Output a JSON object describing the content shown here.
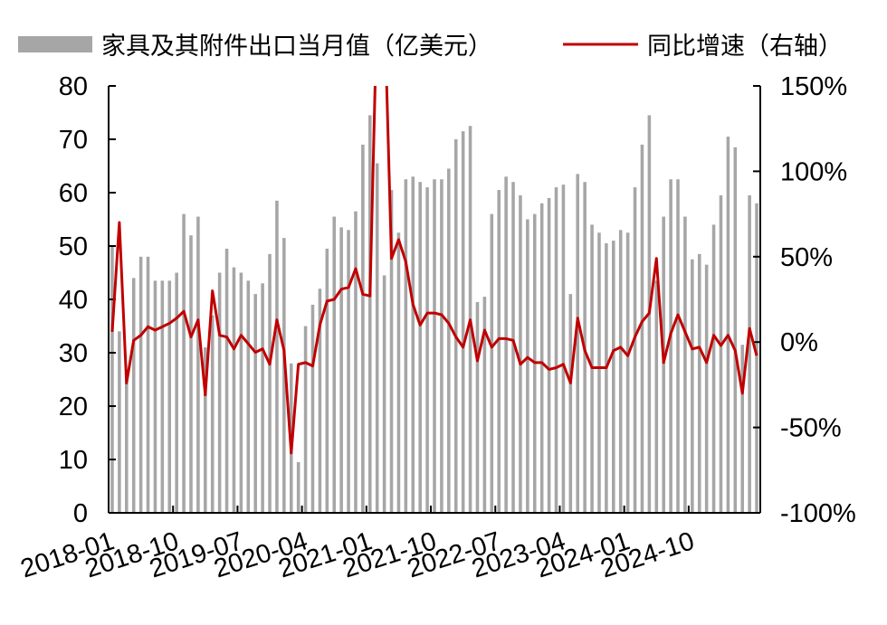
{
  "chart_data": {
    "type": "bar+line",
    "legend": {
      "bar_label": "家具及其附件出口当月值（亿美元）",
      "line_label": "同比增速（右轴）",
      "position": "top"
    },
    "colors": {
      "bar": "#a6a6a6",
      "line": "#c00000",
      "axis": "#000000"
    },
    "y_left": {
      "min": 0,
      "max": 80,
      "ticks": [
        "80",
        "70",
        "60",
        "50",
        "40",
        "30",
        "20",
        "10",
        "0"
      ]
    },
    "y_right": {
      "min": -1.0,
      "max": 1.5,
      "ticks": [
        "150%",
        "100%",
        "50%",
        "0%",
        "-50%",
        "-100%"
      ]
    },
    "x_tick_labels": [
      "2018-01",
      "2018-10",
      "2019-07",
      "2020-04",
      "2021-01",
      "2021-10",
      "2022-07",
      "2023-04",
      "2024-01",
      "2024-10"
    ],
    "x_start": "2018-01",
    "grid": false,
    "series": [
      {
        "name": "家具及其附件出口当月值（亿美元）",
        "type": "bar",
        "values": [
          50.0,
          34.0,
          25.5,
          44.0,
          48.0,
          48.0,
          43.5,
          43.5,
          43.5,
          45.0,
          56.0,
          52.0,
          55.5,
          31.0,
          37.0,
          45.0,
          49.5,
          46.0,
          45.0,
          43.5,
          41.0,
          43.0,
          48.5,
          58.5,
          51.5,
          28.0,
          9.5,
          35.0,
          39.0,
          42.0,
          49.5,
          55.5,
          53.5,
          53.0,
          56.5,
          69.0,
          74.5,
          65.5,
          44.5,
          60.5,
          52.5,
          62.5,
          63.0,
          62.0,
          61.0,
          62.5,
          62.5,
          64.5,
          70.0,
          71.5,
          72.5,
          39.5,
          40.5,
          56.0,
          60.5,
          63.0,
          62.0,
          59.5,
          55.0,
          56.0,
          58.0,
          59.0,
          61.0,
          61.5,
          41.0,
          63.5,
          62.0,
          54.0,
          52.5,
          50.5,
          51.0,
          53.0,
          52.5,
          61.0,
          69.0,
          74.5,
          43.5,
          55.5,
          62.5,
          62.5,
          55.5,
          47.5,
          48.5,
          46.5,
          54.0,
          59.5,
          70.5,
          68.5,
          31.5,
          59.5,
          58.0
        ]
      },
      {
        "name": "同比增速（右轴）",
        "type": "line",
        "axis": "right",
        "values": [
          0.06,
          0.7,
          -0.24,
          0.01,
          0.04,
          0.09,
          0.07,
          0.09,
          0.11,
          0.14,
          0.18,
          0.03,
          0.13,
          -0.31,
          0.3,
          0.04,
          0.03,
          -0.04,
          0.04,
          -0.01,
          -0.06,
          -0.04,
          -0.13,
          0.13,
          -0.05,
          -0.65,
          -0.13,
          -0.12,
          -0.14,
          0.1,
          0.24,
          0.25,
          0.31,
          0.32,
          0.43,
          0.28,
          0.27,
          2.0,
          2.0,
          0.49,
          0.6,
          0.47,
          0.22,
          0.1,
          0.17,
          0.17,
          0.16,
          0.11,
          0.03,
          -0.03,
          0.13,
          -0.11,
          0.07,
          -0.03,
          0.02,
          0.02,
          0.01,
          -0.13,
          -0.09,
          -0.12,
          -0.12,
          -0.16,
          -0.15,
          -0.13,
          -0.24,
          0.14,
          -0.05,
          -0.15,
          -0.15,
          -0.15,
          -0.05,
          -0.03,
          -0.08,
          0.03,
          0.12,
          0.17,
          0.49,
          -0.12,
          0.05,
          0.16,
          0.06,
          -0.04,
          -0.03,
          -0.12,
          0.04,
          -0.02,
          0.04,
          -0.05,
          -0.3,
          0.08,
          -0.08
        ]
      }
    ]
  }
}
